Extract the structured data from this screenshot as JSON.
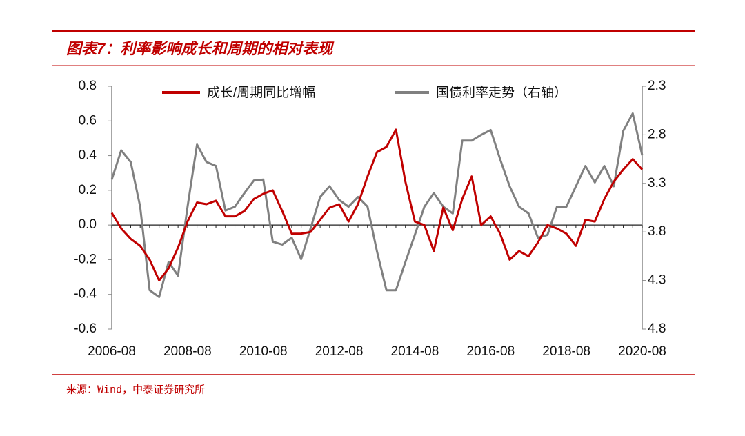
{
  "chart_data": {
    "type": "line",
    "title": "图表7：利率影响成长和周期的相对表现",
    "source": "来源：Wind，中泰证券研究所",
    "x": [
      "2006-08",
      "2006-11",
      "2007-02",
      "2007-05",
      "2007-08",
      "2007-11",
      "2008-02",
      "2008-05",
      "2008-08",
      "2008-11",
      "2009-02",
      "2009-05",
      "2009-08",
      "2009-11",
      "2010-02",
      "2010-05",
      "2010-08",
      "2010-11",
      "2011-02",
      "2011-05",
      "2011-08",
      "2011-11",
      "2012-02",
      "2012-05",
      "2012-08",
      "2012-11",
      "2013-02",
      "2013-05",
      "2013-08",
      "2013-11",
      "2014-02",
      "2014-05",
      "2014-08",
      "2014-11",
      "2015-02",
      "2015-05",
      "2015-08",
      "2015-11",
      "2016-02",
      "2016-05",
      "2016-08",
      "2016-11",
      "2017-02",
      "2017-05",
      "2017-08",
      "2017-11",
      "2018-02",
      "2018-05",
      "2018-08",
      "2018-11",
      "2019-02",
      "2019-05",
      "2019-08",
      "2019-11",
      "2020-02",
      "2020-05",
      "2020-08"
    ],
    "xticks": [
      "2006-08",
      "2008-08",
      "2010-08",
      "2012-08",
      "2014-08",
      "2016-08",
      "2018-08",
      "2020-08"
    ],
    "series": [
      {
        "name": "成长/周期同比增幅",
        "color": "#c00000",
        "values": [
          0.07,
          -0.02,
          -0.08,
          -0.12,
          -0.2,
          -0.32,
          -0.25,
          -0.13,
          0.02,
          0.13,
          0.12,
          0.14,
          0.05,
          0.05,
          0.08,
          0.15,
          0.18,
          0.2,
          0.08,
          -0.05,
          -0.05,
          -0.04,
          0.03,
          0.1,
          0.12,
          0.02,
          0.12,
          0.28,
          0.42,
          0.45,
          0.55,
          0.25,
          0.02,
          0.0,
          -0.15,
          0.1,
          -0.03,
          0.15,
          0.28,
          0.0,
          0.05,
          -0.05,
          -0.2,
          -0.15,
          -0.18,
          -0.1,
          0.0,
          -0.02,
          -0.05,
          -0.12,
          0.03,
          0.02,
          0.15,
          0.25,
          0.32,
          0.38,
          0.32
        ]
      },
      {
        "name": "国债利率走势（右轴）",
        "color": "#808080",
        "axis": "y2",
        "values": [
          3.26,
          2.96,
          3.08,
          3.54,
          4.4,
          4.47,
          4.11,
          4.25,
          3.54,
          2.9,
          3.08,
          3.12,
          3.58,
          3.54,
          3.4,
          3.27,
          3.26,
          3.9,
          3.93,
          3.86,
          4.08,
          3.76,
          3.44,
          3.33,
          3.47,
          3.54,
          3.44,
          3.54,
          4.0,
          4.4,
          4.4,
          4.11,
          3.83,
          3.54,
          3.4,
          3.54,
          3.61,
          2.86,
          2.86,
          2.8,
          2.75,
          3.05,
          3.33,
          3.54,
          3.61,
          3.86,
          3.83,
          3.54,
          3.54,
          3.33,
          3.12,
          3.29,
          3.12,
          3.33,
          2.76,
          2.58,
          3.01
        ]
      }
    ],
    "ylim": [
      -0.6,
      0.8
    ],
    "yticks": [
      0.8,
      0.6,
      0.4,
      0.2,
      {
        "value": 0,
        "label": "0.0"
      },
      -0.2,
      -0.4,
      -0.6
    ],
    "y2lim": [
      2.3,
      4.8
    ],
    "y2_inverted": true,
    "y2ticks": [
      2.3,
      2.8,
      3.3,
      3.8,
      4.3,
      4.8
    ],
    "zero_line": true
  }
}
